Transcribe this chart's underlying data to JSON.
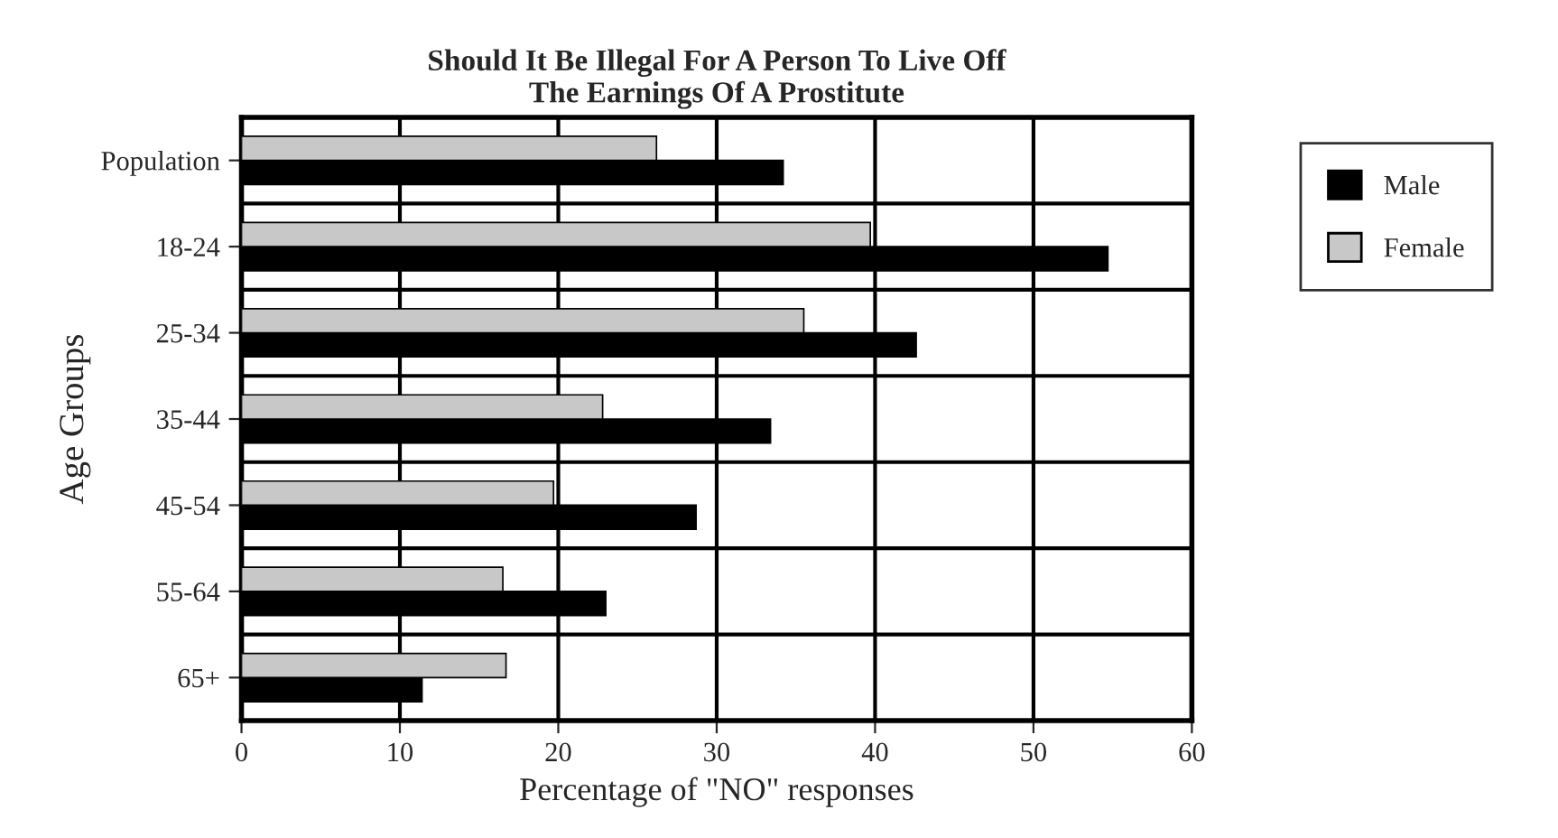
{
  "chart_data": {
    "type": "bar",
    "orientation": "horizontal",
    "title": "Should It Be Illegal For A Person To Live Off\nThe Earnings Of A Prostitute",
    "xlabel": "Percentage of \"NO\" responses",
    "ylabel": "Age Groups",
    "categories": [
      "Population",
      "18-24",
      "25-34",
      "35-44",
      "45-54",
      "55-64",
      "65+"
    ],
    "series": [
      {
        "name": "Male",
        "color": "#000000",
        "values": [
          34.2,
          54.7,
          42.6,
          33.4,
          28.7,
          23.0,
          11.4
        ]
      },
      {
        "name": "Female",
        "color": "#c8c8c8",
        "values": [
          26.2,
          39.7,
          35.5,
          22.8,
          19.7,
          16.5,
          16.7
        ]
      }
    ],
    "xlim": [
      0,
      60
    ],
    "xticks": [
      0,
      10,
      20,
      30,
      40,
      50,
      60
    ],
    "grid": true,
    "legend": "right"
  }
}
